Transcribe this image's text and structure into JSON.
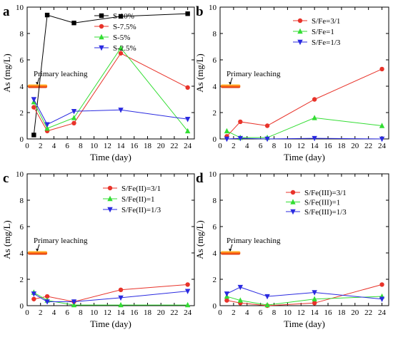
{
  "chart_data": [
    {
      "panel_label": "a",
      "type": "line",
      "xlabel": "Time (day)",
      "ylabel": "As (mg/L)",
      "xlim": [
        0,
        25
      ],
      "ylim": [
        0,
        10
      ],
      "xticks": [
        0,
        2,
        4,
        6,
        8,
        10,
        12,
        14,
        16,
        18,
        20,
        22,
        24
      ],
      "yticks": [
        0,
        2,
        4,
        6,
        8,
        10
      ],
      "legend_position": "top-right",
      "annotation": "Primary leaching",
      "reference_level": 4,
      "series": [
        {
          "name": "S-10%",
          "color": "#000000",
          "marker": "square",
          "x": [
            1,
            3,
            7,
            14,
            24
          ],
          "y": [
            0.3,
            9.4,
            8.8,
            9.3,
            9.5
          ]
        },
        {
          "name": "S-7.5%",
          "color": "#e8332a",
          "marker": "circle",
          "x": [
            1,
            3,
            7,
            14,
            24
          ],
          "y": [
            2.4,
            0.6,
            1.2,
            6.5,
            3.9
          ]
        },
        {
          "name": "S-5%",
          "color": "#33dd33",
          "marker": "triangle-up",
          "x": [
            1,
            3,
            7,
            14,
            24
          ],
          "y": [
            2.8,
            0.8,
            1.6,
            6.9,
            0.6
          ]
        },
        {
          "name": "S-2.5%",
          "color": "#2a2ae0",
          "marker": "triangle-down",
          "x": [
            1,
            3,
            7,
            14,
            24
          ],
          "y": [
            3.0,
            1.1,
            2.1,
            2.2,
            1.5
          ]
        }
      ]
    },
    {
      "panel_label": "b",
      "type": "line",
      "xlabel": "Time (day)",
      "ylabel": "As (mg/L)",
      "xlim": [
        0,
        25
      ],
      "ylim": [
        0,
        10
      ],
      "xticks": [
        0,
        2,
        4,
        6,
        8,
        10,
        12,
        14,
        16,
        18,
        20,
        22,
        24
      ],
      "yticks": [
        0,
        2,
        4,
        6,
        8,
        10
      ],
      "legend_position": "top-right",
      "annotation": "Primary leaching",
      "reference_level": 4,
      "series": [
        {
          "name": "S/Fe=3/1",
          "color": "#e8332a",
          "marker": "circle",
          "x": [
            1,
            3,
            7,
            14,
            24
          ],
          "y": [
            0.2,
            1.3,
            1.0,
            3.0,
            5.3
          ]
        },
        {
          "name": "S/Fe=1",
          "color": "#33dd33",
          "marker": "triangle-up",
          "x": [
            1,
            3,
            7,
            14,
            24
          ],
          "y": [
            0.6,
            0.1,
            0.1,
            1.6,
            1.0
          ]
        },
        {
          "name": "S/Fe=1/3",
          "color": "#2a2ae0",
          "marker": "triangle-down",
          "x": [
            1,
            3,
            7,
            14,
            24
          ],
          "y": [
            0.0,
            0.05,
            0.0,
            0.05,
            0.0
          ]
        }
      ]
    },
    {
      "panel_label": "c",
      "type": "line",
      "xlabel": "Time (day)",
      "ylabel": "As (mg/L)",
      "xlim": [
        0,
        25
      ],
      "ylim": [
        0,
        10
      ],
      "xticks": [
        0,
        2,
        4,
        6,
        8,
        10,
        12,
        14,
        16,
        18,
        20,
        22,
        24
      ],
      "yticks": [
        0,
        2,
        4,
        6,
        8,
        10
      ],
      "legend_position": "top-right",
      "annotation": "Primary leaching",
      "reference_level": 4,
      "series": [
        {
          "name": "S/Fe(II)=3/1",
          "color": "#e8332a",
          "marker": "circle",
          "x": [
            1,
            3,
            7,
            14,
            24
          ],
          "y": [
            0.5,
            0.7,
            0.3,
            1.2,
            1.6
          ]
        },
        {
          "name": "S/Fe(II)=1",
          "color": "#33dd33",
          "marker": "triangle-up",
          "x": [
            1,
            3,
            7,
            14,
            24
          ],
          "y": [
            1.0,
            0.4,
            0.05,
            0.05,
            0.05
          ]
        },
        {
          "name": "S/Fe(II)=1/3",
          "color": "#2a2ae0",
          "marker": "triangle-down",
          "x": [
            1,
            3,
            7,
            14,
            24
          ],
          "y": [
            0.9,
            0.3,
            0.3,
            0.6,
            1.1
          ]
        }
      ]
    },
    {
      "panel_label": "d",
      "type": "line",
      "xlabel": "Time (day)",
      "ylabel": "As (mg/L)",
      "xlim": [
        0,
        25
      ],
      "ylim": [
        0,
        10
      ],
      "xticks": [
        0,
        2,
        4,
        6,
        8,
        10,
        12,
        14,
        16,
        18,
        20,
        22,
        24
      ],
      "yticks": [
        0,
        2,
        4,
        6,
        8,
        10
      ],
      "legend_position": "top-right",
      "annotation": "Primary leaching",
      "reference_level": 4,
      "series": [
        {
          "name": "S/Fe(III)=3/1",
          "color": "#e8332a",
          "marker": "circle",
          "x": [
            1,
            3,
            7,
            14,
            24
          ],
          "y": [
            0.4,
            0.2,
            0.0,
            0.2,
            1.6
          ]
        },
        {
          "name": "S/Fe(III)=1",
          "color": "#33dd33",
          "marker": "triangle-up",
          "x": [
            1,
            3,
            7,
            14,
            24
          ],
          "y": [
            0.7,
            0.4,
            0.05,
            0.5,
            0.7
          ]
        },
        {
          "name": "S/Fe(III)=1/3",
          "color": "#2a2ae0",
          "marker": "triangle-down",
          "x": [
            1,
            3,
            7,
            14,
            24
          ],
          "y": [
            0.9,
            1.4,
            0.7,
            1.0,
            0.5
          ]
        }
      ]
    }
  ]
}
